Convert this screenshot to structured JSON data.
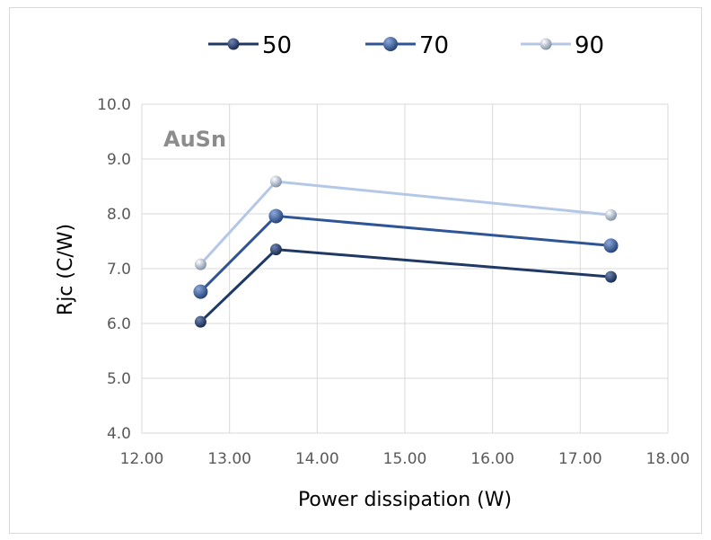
{
  "chart_data": {
    "type": "line",
    "title": "",
    "xlabel": "Power dissipation (W)",
    "ylabel": "Rjc (C/W)",
    "xlim": [
      12.0,
      18.0
    ],
    "ylim": [
      4.0,
      10.0
    ],
    "x_ticks": [
      "12.00",
      "13.00",
      "14.00",
      "15.00",
      "16.00",
      "17.00",
      "18.00"
    ],
    "y_ticks": [
      "4.0",
      "5.0",
      "6.0",
      "7.0",
      "8.0",
      "9.0",
      "10.0"
    ],
    "grid": true,
    "legend_position": "top",
    "annotation": "AuSn",
    "series": [
      {
        "name": "50",
        "color": "#1f3864",
        "x": [
          12.67,
          13.53,
          17.35
        ],
        "y": [
          6.03,
          7.35,
          6.85
        ]
      },
      {
        "name": "70",
        "color": "#2f5597",
        "x": [
          12.67,
          13.53,
          17.35
        ],
        "y": [
          6.58,
          7.96,
          7.42
        ]
      },
      {
        "name": "90",
        "color": "#b4c7e7",
        "x": [
          12.67,
          13.53,
          17.35
        ],
        "y": [
          7.08,
          8.59,
          7.98
        ]
      }
    ]
  }
}
